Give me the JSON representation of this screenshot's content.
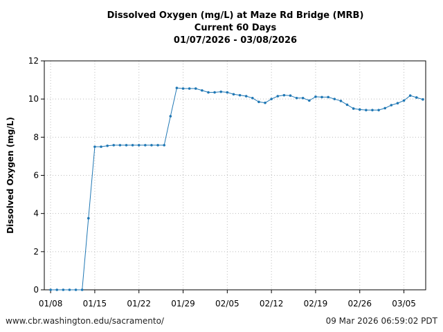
{
  "chart_data": {
    "type": "line",
    "title": "Dissolved Oxygen (mg/L) at Maze Rd Bridge (MRB)",
    "subtitle": "Current 60 Days",
    "date_range": "01/07/2026 - 03/08/2026",
    "ylabel": "Dissolved Oxygen (mg/L)",
    "ylim": [
      0,
      12
    ],
    "yticks": [
      "0",
      "2",
      "4",
      "6",
      "8",
      "10",
      "12"
    ],
    "xlim": [
      "2026-01-07",
      "2026-03-08"
    ],
    "xticks": [
      {
        "date": "2026-01-08",
        "label": "01/08"
      },
      {
        "date": "2026-01-15",
        "label": "01/15"
      },
      {
        "date": "2026-01-22",
        "label": "01/22"
      },
      {
        "date": "2026-01-29",
        "label": "01/29"
      },
      {
        "date": "2026-02-05",
        "label": "02/05"
      },
      {
        "date": "2026-02-12",
        "label": "02/12"
      },
      {
        "date": "2026-02-19",
        "label": "02/19"
      },
      {
        "date": "2026-02-26",
        "label": "02/26"
      },
      {
        "date": "2026-03-05",
        "label": "03/05"
      }
    ],
    "grid": true,
    "line_color": "#1f77b4",
    "series": [
      {
        "x": [
          "2026-01-08",
          "2026-01-09",
          "2026-01-10",
          "2026-01-11",
          "2026-01-12",
          "2026-01-13",
          "2026-01-14",
          "2026-01-15",
          "2026-01-16",
          "2026-01-17",
          "2026-01-18",
          "2026-01-19",
          "2026-01-20",
          "2026-01-21",
          "2026-01-22",
          "2026-01-23",
          "2026-01-24",
          "2026-01-25",
          "2026-01-26",
          "2026-01-27",
          "2026-01-28",
          "2026-01-29",
          "2026-01-30",
          "2026-01-31",
          "2026-02-01",
          "2026-02-02",
          "2026-02-03",
          "2026-02-04",
          "2026-02-05",
          "2026-02-06",
          "2026-02-07",
          "2026-02-08",
          "2026-02-09",
          "2026-02-10",
          "2026-02-11",
          "2026-02-12",
          "2026-02-13",
          "2026-02-14",
          "2026-02-15",
          "2026-02-16",
          "2026-02-17",
          "2026-02-18",
          "2026-02-19",
          "2026-02-20",
          "2026-02-21",
          "2026-02-22",
          "2026-02-23",
          "2026-02-24",
          "2026-02-25",
          "2026-02-26",
          "2026-02-27",
          "2026-02-28",
          "2026-03-01",
          "2026-03-02",
          "2026-03-03",
          "2026-03-04",
          "2026-03-05",
          "2026-03-06",
          "2026-03-07",
          "2026-03-08"
        ],
        "values": [
          0,
          0,
          0,
          0,
          0,
          0,
          3.75,
          7.5,
          7.5,
          7.55,
          7.58,
          7.58,
          7.58,
          7.58,
          7.58,
          7.58,
          7.58,
          7.58,
          7.58,
          9.1,
          10.58,
          10.55,
          10.55,
          10.55,
          10.45,
          10.35,
          10.35,
          10.38,
          10.35,
          10.25,
          10.2,
          10.15,
          10.05,
          9.85,
          9.8,
          10.0,
          10.15,
          10.2,
          10.18,
          10.05,
          10.05,
          9.92,
          10.12,
          10.1,
          10.1,
          10.0,
          9.9,
          9.7,
          9.5,
          9.45,
          9.42,
          9.42,
          9.42,
          9.52,
          9.68,
          9.78,
          9.92,
          10.18,
          10.08,
          9.98
        ]
      }
    ]
  },
  "footer": {
    "source": "www.cbr.washington.edu/sacramento/",
    "timestamp": "09 Mar 2026 06:59:02 PDT"
  }
}
